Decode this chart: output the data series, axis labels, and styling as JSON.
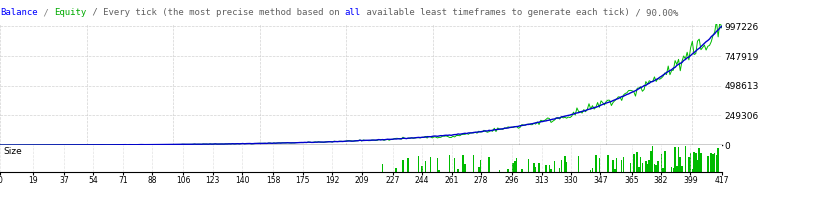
{
  "title_items": [
    [
      "Balance",
      "#0000FF"
    ],
    [
      " / ",
      "#808080"
    ],
    [
      "Equity",
      "#00AA00"
    ],
    [
      " / Every tick (the most precise method based on ",
      "#606060"
    ],
    [
      "all",
      "#0000FF"
    ],
    [
      " available least timeframes to generate each tick)",
      "#606060"
    ],
    [
      " / 90.00%",
      "#606060"
    ]
  ],
  "bg_color": "#FFFFFF",
  "plot_bg_color": "#FFFFFF",
  "grid_color": "#C8C8C8",
  "balance_color": "#0000CD",
  "equity_color": "#00BB00",
  "size_color": "#00BB00",
  "x_min": 0,
  "x_max": 417,
  "y_min": 0,
  "y_max": 997226,
  "y_ticks": [
    0,
    249306,
    498613,
    747919,
    997226
  ],
  "y_tick_labels": [
    "0",
    "249306",
    "498613",
    "747919",
    "997226"
  ],
  "x_ticks": [
    0,
    19,
    37,
    54,
    71,
    88,
    106,
    123,
    140,
    158,
    175,
    192,
    209,
    227,
    244,
    261,
    278,
    296,
    313,
    330,
    347,
    365,
    382,
    399,
    417
  ],
  "size_label": "Size",
  "size_y_max": 1.0,
  "n_points": 420
}
